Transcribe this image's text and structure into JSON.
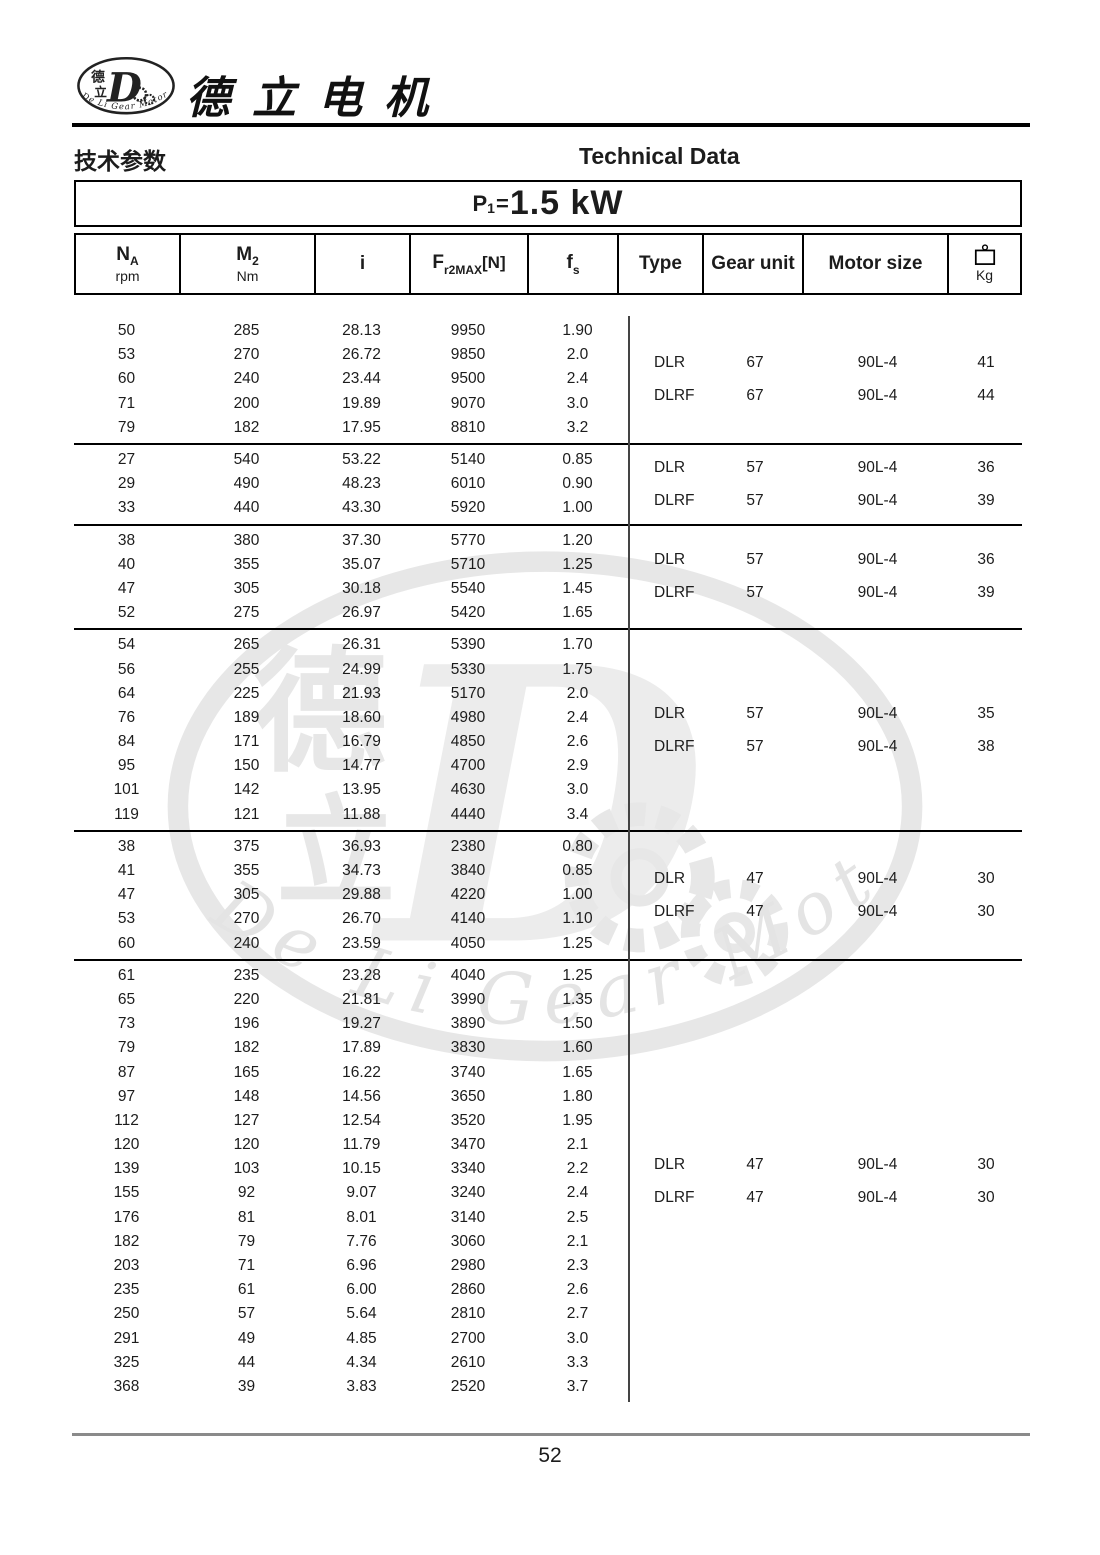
{
  "brand": {
    "title_cn": "德立电机",
    "logo": {
      "cn_top": "德",
      "cn_bottom": "立",
      "letter": "D",
      "arc_text": "De Li Gear Motor"
    }
  },
  "header": {
    "section_cn": "技术参数",
    "section_en": "Technical Data"
  },
  "power": {
    "symbol": "P",
    "sub": "1",
    "equals": "=",
    "value": "1.5 kW"
  },
  "watermark": {
    "arc_text": "De Li Gear Motor"
  },
  "footer": {
    "page_number": "52"
  },
  "table": {
    "columns": [
      {
        "main": "N",
        "sub": "A",
        "bracket": "",
        "unit": "rpm"
      },
      {
        "main": "M",
        "sub": "2",
        "bracket": "",
        "unit": "Nm"
      },
      {
        "main": "i",
        "sub": "",
        "bracket": "",
        "unit": ""
      },
      {
        "main": "F",
        "sub": "r2MAX",
        "bracket": "[N]",
        "unit": ""
      },
      {
        "main": "f",
        "sub": "s",
        "bracket": "",
        "unit": ""
      },
      {
        "label": "Type"
      },
      {
        "label": "Gear unit"
      },
      {
        "label": "Motor size"
      },
      {
        "icon": "weight-icon",
        "unit": "Kg"
      }
    ],
    "groups": [
      {
        "rows": [
          [
            "50",
            "285",
            "28.13",
            "9950",
            "1.90"
          ],
          [
            "53",
            "270",
            "26.72",
            "9850",
            "2.0"
          ],
          [
            "60",
            "240",
            "23.44",
            "9500",
            "2.4"
          ],
          [
            "71",
            "200",
            "19.89",
            "9070",
            "3.0"
          ],
          [
            "79",
            "182",
            "17.95",
            "8810",
            "3.2"
          ]
        ],
        "types": [
          {
            "type": "DLR",
            "gear_unit": "67",
            "motor_size": "90L-4",
            "kg": "41"
          },
          {
            "type": "DLRF",
            "gear_unit": "67",
            "motor_size": "90L-4",
            "kg": "44"
          }
        ]
      },
      {
        "rows": [
          [
            "27",
            "540",
            "53.22",
            "5140",
            "0.85"
          ],
          [
            "29",
            "490",
            "48.23",
            "6010",
            "0.90"
          ],
          [
            "33",
            "440",
            "43.30",
            "5920",
            "1.00"
          ]
        ],
        "types": [
          {
            "type": "DLR",
            "gear_unit": "57",
            "motor_size": "90L-4",
            "kg": "36"
          },
          {
            "type": "DLRF",
            "gear_unit": "57",
            "motor_size": "90L-4",
            "kg": "39"
          }
        ]
      },
      {
        "rows": [
          [
            "38",
            "380",
            "37.30",
            "5770",
            "1.20"
          ],
          [
            "40",
            "355",
            "35.07",
            "5710",
            "1.25"
          ],
          [
            "47",
            "305",
            "30.18",
            "5540",
            "1.45"
          ],
          [
            "52",
            "275",
            "26.97",
            "5420",
            "1.65"
          ]
        ],
        "types": [
          {
            "type": "DLR",
            "gear_unit": "57",
            "motor_size": "90L-4",
            "kg": "36"
          },
          {
            "type": "DLRF",
            "gear_unit": "57",
            "motor_size": "90L-4",
            "kg": "39"
          }
        ]
      },
      {
        "rows": [
          [
            "54",
            "265",
            "26.31",
            "5390",
            "1.70"
          ],
          [
            "56",
            "255",
            "24.99",
            "5330",
            "1.75"
          ],
          [
            "64",
            "225",
            "21.93",
            "5170",
            "2.0"
          ],
          [
            "76",
            "189",
            "18.60",
            "4980",
            "2.4"
          ],
          [
            "84",
            "171",
            "16.79",
            "4850",
            "2.6"
          ],
          [
            "95",
            "150",
            "14.77",
            "4700",
            "2.9"
          ],
          [
            "101",
            "142",
            "13.95",
            "4630",
            "3.0"
          ],
          [
            "119",
            "121",
            "11.88",
            "4440",
            "3.4"
          ]
        ],
        "types": [
          {
            "type": "DLR",
            "gear_unit": "57",
            "motor_size": "90L-4",
            "kg": "35"
          },
          {
            "type": "DLRF",
            "gear_unit": "57",
            "motor_size": "90L-4",
            "kg": "38"
          }
        ]
      },
      {
        "rows": [
          [
            "38",
            "375",
            "36.93",
            "2380",
            "0.80"
          ],
          [
            "41",
            "355",
            "34.73",
            "3840",
            "0.85"
          ],
          [
            "47",
            "305",
            "29.88",
            "4220",
            "1.00"
          ],
          [
            "53",
            "270",
            "26.70",
            "4140",
            "1.10"
          ],
          [
            "60",
            "240",
            "23.59",
            "4050",
            "1.25"
          ]
        ],
        "types": [
          {
            "type": "DLR",
            "gear_unit": "47",
            "motor_size": "90L-4",
            "kg": "30"
          },
          {
            "type": "DLRF",
            "gear_unit": "47",
            "motor_size": "90L-4",
            "kg": "30"
          }
        ]
      },
      {
        "rows": [
          [
            "61",
            "235",
            "23.28",
            "4040",
            "1.25"
          ],
          [
            "65",
            "220",
            "21.81",
            "3990",
            "1.35"
          ],
          [
            "73",
            "196",
            "19.27",
            "3890",
            "1.50"
          ],
          [
            "79",
            "182",
            "17.89",
            "3830",
            "1.60"
          ],
          [
            "87",
            "165",
            "16.22",
            "3740",
            "1.65"
          ],
          [
            "97",
            "148",
            "14.56",
            "3650",
            "1.80"
          ],
          [
            "112",
            "127",
            "12.54",
            "3520",
            "1.95"
          ],
          [
            "120",
            "120",
            "11.79",
            "3470",
            "2.1"
          ],
          [
            "139",
            "103",
            "10.15",
            "3340",
            "2.2"
          ],
          [
            "155",
            "92",
            "9.07",
            "3240",
            "2.4"
          ],
          [
            "176",
            "81",
            "8.01",
            "3140",
            "2.5"
          ],
          [
            "182",
            "79",
            "7.76",
            "3060",
            "2.1"
          ],
          [
            "203",
            "71",
            "6.96",
            "2980",
            "2.3"
          ],
          [
            "235",
            "61",
            "6.00",
            "2860",
            "2.6"
          ],
          [
            "250",
            "57",
            "5.64",
            "2810",
            "2.7"
          ],
          [
            "291",
            "49",
            "4.85",
            "2700",
            "3.0"
          ],
          [
            "325",
            "44",
            "4.34",
            "2610",
            "3.3"
          ],
          [
            "368",
            "39",
            "3.83",
            "2520",
            "3.7"
          ]
        ],
        "types": [
          {
            "type": "DLR",
            "gear_unit": "47",
            "motor_size": "90L-4",
            "kg": "30"
          },
          {
            "type": "DLRF",
            "gear_unit": "47",
            "motor_size": "90L-4",
            "kg": "30"
          }
        ]
      }
    ]
  }
}
